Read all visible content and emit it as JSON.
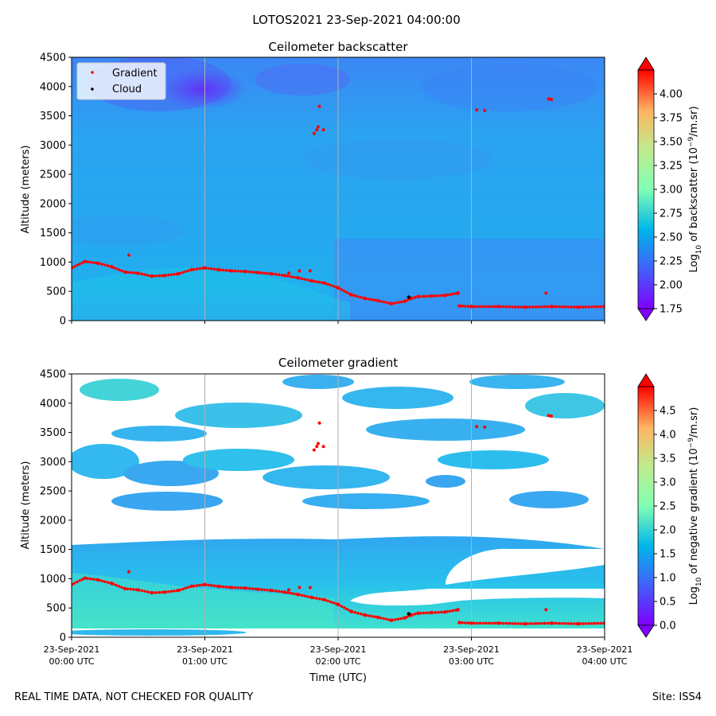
{
  "figure": {
    "suptitle": "LOTOS2021 23-Sep-2021 04:00:00",
    "footer_left": "REAL TIME DATA, NOT CHECKED FOR QUALITY",
    "footer_right": "Site: ISS4"
  },
  "chart_data": [
    {
      "type": "heatmap",
      "title": "Ceilometer backscatter",
      "ylabel": "Altitude (meters)",
      "xlabel": "",
      "xlim": [
        0,
        4
      ],
      "ylim": [
        0,
        4500
      ],
      "yticks": [
        "0",
        "500",
        "1000",
        "1500",
        "2000",
        "2500",
        "3000",
        "3500",
        "4000",
        "4500"
      ],
      "grid": "vertical",
      "legend": {
        "position": "top-left",
        "entries": [
          {
            "label": "Gradient",
            "color": "#ff0000"
          },
          {
            "label": "Cloud",
            "color": "#000000"
          }
        ]
      },
      "colorbar": {
        "label_prefix": "Log",
        "label_sub": "10",
        "label_mid": " of backscatter (10",
        "label_sup": "−9",
        "label_suffix": "/m.sr)",
        "range": [
          1.75,
          4.25
        ],
        "ticks": [
          "1.75",
          "2.00",
          "2.25",
          "2.50",
          "2.75",
          "3.00",
          "3.25",
          "3.50",
          "3.75",
          "4.00"
        ],
        "colormap": "rainbow"
      },
      "gradient_layer": {
        "hours": [
          0,
          0.1,
          0.2,
          0.3,
          0.4,
          0.5,
          0.6,
          0.7,
          0.8,
          0.9,
          1.0,
          1.1,
          1.2,
          1.3,
          1.4,
          1.5,
          1.6,
          1.7,
          1.8,
          1.9,
          2.0,
          2.1,
          2.2,
          2.3,
          2.4,
          2.5,
          2.55,
          2.6,
          2.7,
          2.8,
          2.9,
          2.91,
          3.0,
          3.2,
          3.4,
          3.6,
          3.8,
          4.0
        ],
        "altitude_m": [
          900,
          1010,
          980,
          920,
          830,
          810,
          760,
          770,
          800,
          870,
          900,
          870,
          850,
          840,
          820,
          800,
          770,
          730,
          680,
          640,
          560,
          440,
          380,
          340,
          290,
          330,
          380,
          410,
          420,
          430,
          470,
          250,
          240,
          240,
          230,
          240,
          230,
          240
        ]
      },
      "gradient_isolated_points": [
        {
          "hour": 0.43,
          "altitude_m": 1120
        },
        {
          "hour": 1.63,
          "altitude_m": 810
        },
        {
          "hour": 1.71,
          "altitude_m": 850
        },
        {
          "hour": 1.79,
          "altitude_m": 850
        },
        {
          "hour": 1.86,
          "altitude_m": 3660
        },
        {
          "hour": 1.82,
          "altitude_m": 3200
        },
        {
          "hour": 1.84,
          "altitude_m": 3260
        },
        {
          "hour": 1.85,
          "altitude_m": 3310
        },
        {
          "hour": 1.89,
          "altitude_m": 3260
        },
        {
          "hour": 3.04,
          "altitude_m": 3600
        },
        {
          "hour": 3.1,
          "altitude_m": 3590
        },
        {
          "hour": 3.56,
          "altitude_m": 470
        },
        {
          "hour": 3.58,
          "altitude_m": 3790
        },
        {
          "hour": 3.6,
          "altitude_m": 3780
        }
      ],
      "cloud_points": [
        {
          "hour": 2.53,
          "altitude_m": 400
        }
      ]
    },
    {
      "type": "heatmap",
      "title": "Ceilometer gradient",
      "ylabel": "Altitude (meters)",
      "xlabel": "Time (UTC)",
      "xlim": [
        0,
        4
      ],
      "ylim": [
        0,
        4500
      ],
      "xtick_dates": [
        "23-Sep-2021",
        "23-Sep-2021",
        "23-Sep-2021",
        "23-Sep-2021",
        "23-Sep-2021"
      ],
      "xtick_times": [
        "00:00 UTC",
        "01:00 UTC",
        "02:00 UTC",
        "03:00 UTC",
        "04:00 UTC"
      ],
      "yticks": [
        "0",
        "500",
        "1000",
        "1500",
        "2000",
        "2500",
        "3000",
        "3500",
        "4000",
        "4500"
      ],
      "grid": "vertical",
      "colorbar": {
        "label_prefix": "Log",
        "label_sub": "10",
        "label_mid": " of negative gradient (10",
        "label_sup": "−9",
        "label_suffix": "/m.sr)",
        "range": [
          0,
          5
        ],
        "ticks": [
          "0.0",
          "0.5",
          "1.0",
          "1.5",
          "2.0",
          "2.5",
          "3.0",
          "3.5",
          "4.0",
          "4.5"
        ],
        "colormap": "rainbow"
      },
      "bands": [
        {
          "description": "lower boundary layer",
          "altitude_range_m": [
            150,
            1700
          ],
          "intensity": 1.3
        },
        {
          "description": "mid layer patches",
          "altitude_range_m": [
            2300,
            3300
          ],
          "intensity": 1.0
        },
        {
          "description": "upper layer patches",
          "altitude_range_m": [
            3400,
            4300
          ],
          "intensity": 1.2
        }
      ]
    }
  ]
}
